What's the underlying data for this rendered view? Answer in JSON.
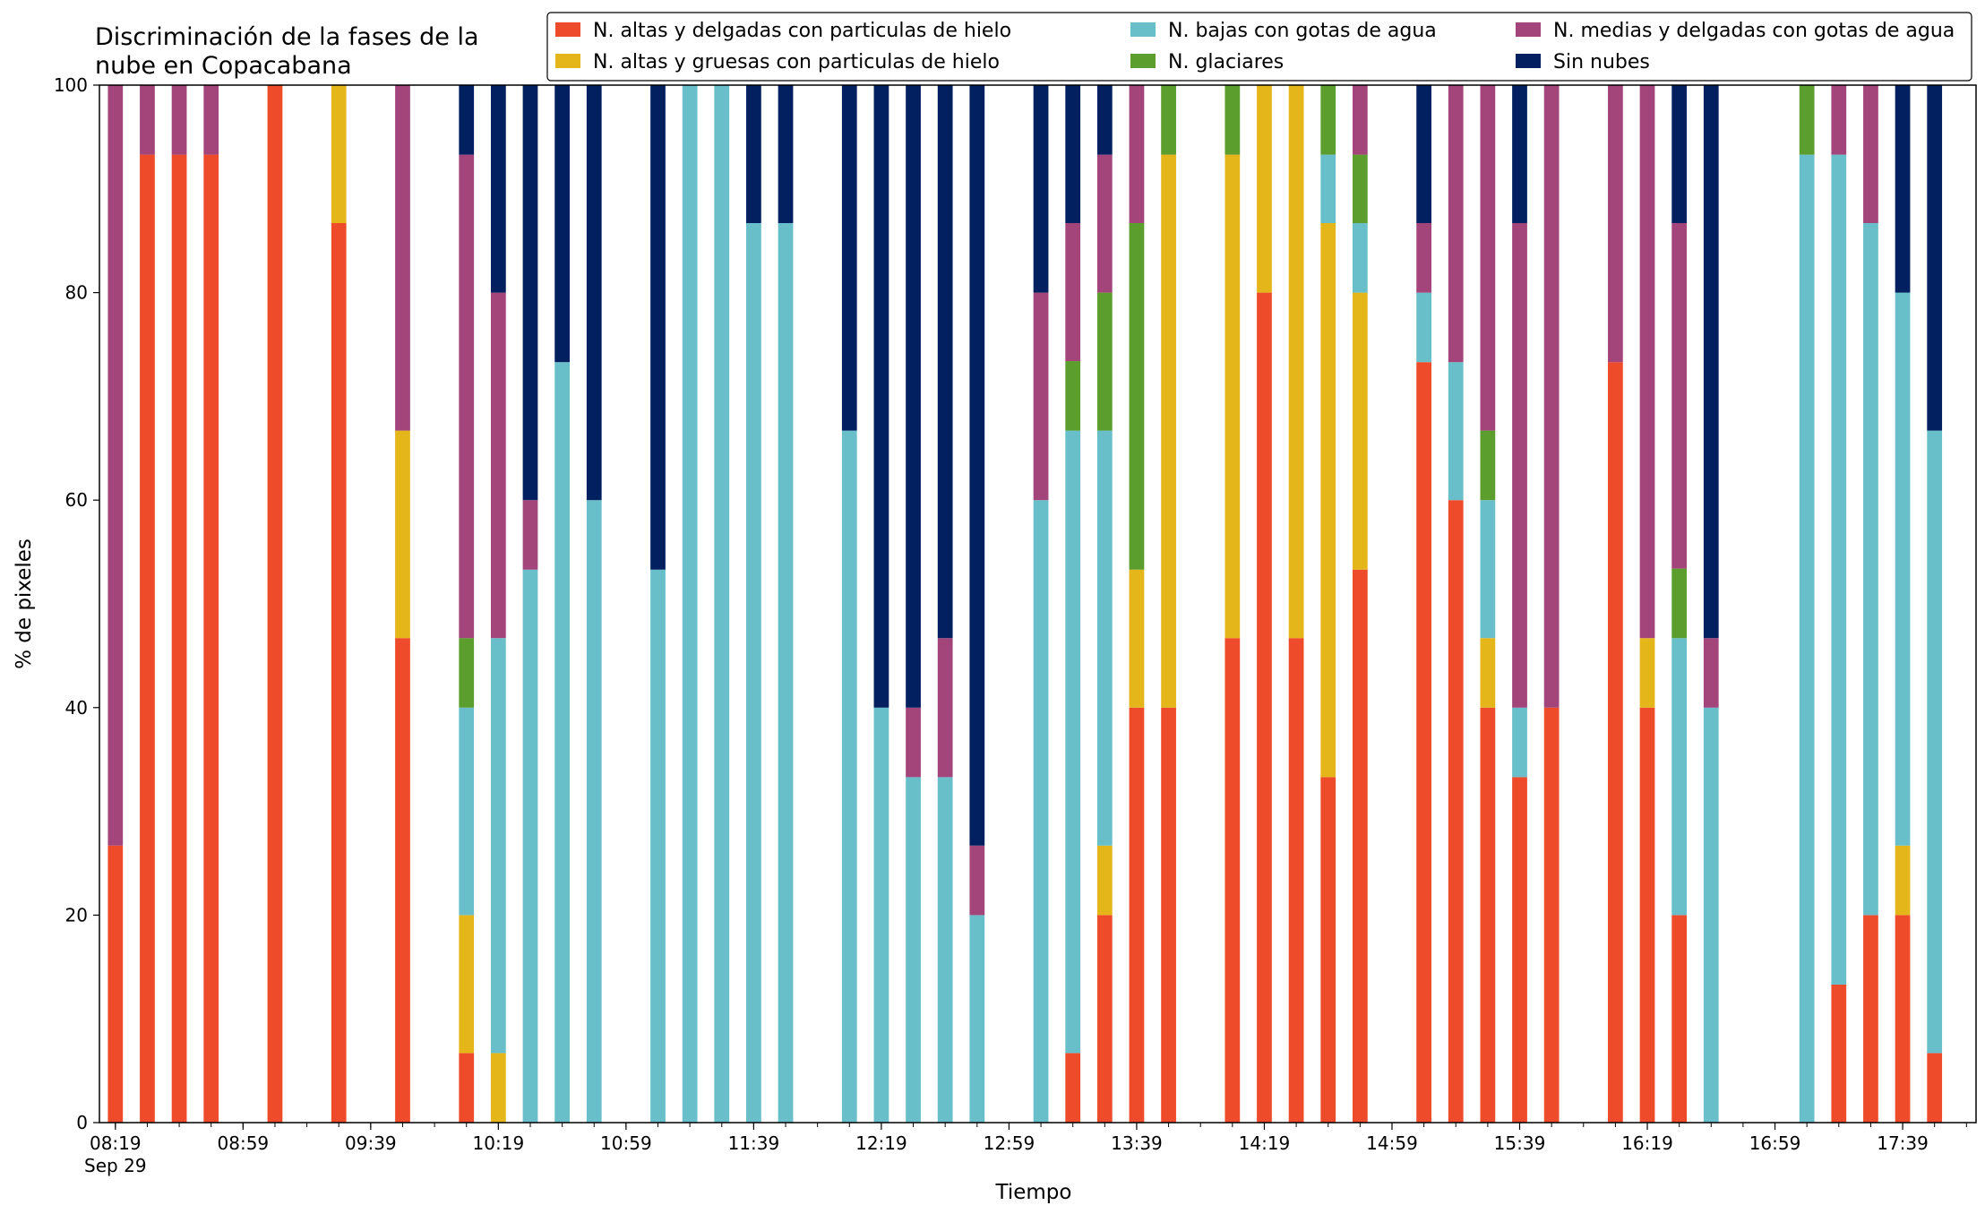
{
  "chart_data": {
    "type": "bar",
    "stacked": true,
    "title_lines": [
      "Discriminación de la fases de la",
      "nube en Copacabana"
    ],
    "xlabel": "Tiempo",
    "ylabel": "% de pixeles",
    "ylim": [
      0,
      100
    ],
    "yticks": [
      0,
      20,
      40,
      60,
      80,
      100
    ],
    "xlim": [
      "08:14",
      "18:02"
    ],
    "xtick_labels": [
      "08:19",
      "08:59",
      "09:39",
      "10:19",
      "10:59",
      "11:39",
      "12:19",
      "12:59",
      "13:39",
      "14:19",
      "14:59",
      "15:39",
      "16:19",
      "16:59",
      "17:39"
    ],
    "xtick_sublabel": "Sep 29",
    "minor_tick_interval_minutes": 10,
    "bar_width_minutes": 4.7,
    "grid": false,
    "legend_position": "top-right",
    "series": [
      {
        "name": "N. altas y delgadas con particulas de hielo",
        "color": "#ee4b2b"
      },
      {
        "name": "N. altas y gruesas con particulas de hielo",
        "color": "#e5b619"
      },
      {
        "name": "N. bajas con gotas de agua",
        "color": "#68bfca"
      },
      {
        "name": "N. glaciares",
        "color": "#5b9e2e"
      },
      {
        "name": "N. medias y delgadas con gotas de agua",
        "color": "#a3457b"
      },
      {
        "name": "Sin nubes",
        "color": "#022060"
      }
    ],
    "bars": [
      {
        "time": "08:19",
        "values": [
          26.7,
          0,
          0,
          0,
          73.3,
          0
        ]
      },
      {
        "time": "08:29",
        "values": [
          93.3,
          0,
          0,
          0,
          6.7,
          0
        ]
      },
      {
        "time": "08:39",
        "values": [
          93.3,
          0,
          0,
          0,
          6.7,
          0
        ]
      },
      {
        "time": "08:49",
        "values": [
          93.3,
          0,
          0,
          0,
          6.7,
          0
        ]
      },
      {
        "time": "09:09",
        "values": [
          100,
          0,
          0,
          0,
          0,
          0
        ]
      },
      {
        "time": "09:29",
        "values": [
          86.7,
          13.3,
          0,
          0,
          0,
          0
        ]
      },
      {
        "time": "09:49",
        "values": [
          46.7,
          20,
          0,
          0,
          33.3,
          0
        ]
      },
      {
        "time": "10:09",
        "values": [
          6.7,
          13.3,
          20,
          6.7,
          46.6,
          6.7
        ]
      },
      {
        "time": "10:19",
        "values": [
          0,
          6.7,
          40,
          0,
          33.3,
          20
        ]
      },
      {
        "time": "10:29",
        "values": [
          0,
          0,
          53.3,
          0,
          6.7,
          40
        ]
      },
      {
        "time": "10:39",
        "values": [
          0,
          0,
          73.3,
          0,
          0,
          26.7
        ]
      },
      {
        "time": "10:49",
        "values": [
          0,
          0,
          60,
          0,
          0,
          40
        ]
      },
      {
        "time": "11:09",
        "values": [
          0,
          0,
          53.3,
          0,
          0,
          46.7
        ]
      },
      {
        "time": "11:19",
        "values": [
          0,
          0,
          100,
          0,
          0,
          0
        ]
      },
      {
        "time": "11:29",
        "values": [
          0,
          0,
          100,
          0,
          0,
          0
        ]
      },
      {
        "time": "11:39",
        "values": [
          0,
          0,
          86.7,
          0,
          0,
          13.3
        ]
      },
      {
        "time": "11:49",
        "values": [
          0,
          0,
          86.7,
          0,
          0,
          13.3
        ]
      },
      {
        "time": "12:09",
        "values": [
          0,
          0,
          66.7,
          0,
          0,
          33.3
        ]
      },
      {
        "time": "12:19",
        "values": [
          0,
          0,
          40,
          0,
          0,
          60
        ]
      },
      {
        "time": "12:29",
        "values": [
          0,
          0,
          33.3,
          0,
          6.7,
          60
        ]
      },
      {
        "time": "12:39",
        "values": [
          0,
          0,
          33.3,
          0,
          13.4,
          53.3
        ]
      },
      {
        "time": "12:49",
        "values": [
          0,
          0,
          20,
          0,
          6.7,
          73.3
        ]
      },
      {
        "time": "13:09",
        "values": [
          0,
          0,
          60,
          0,
          20,
          20
        ]
      },
      {
        "time": "13:19",
        "values": [
          6.7,
          0,
          60,
          6.7,
          13.3,
          13.3
        ]
      },
      {
        "time": "13:29",
        "values": [
          20,
          6.7,
          40,
          13.3,
          13.3,
          6.7
        ]
      },
      {
        "time": "13:39",
        "values": [
          40,
          13.3,
          0,
          33.4,
          13.3,
          0
        ]
      },
      {
        "time": "13:49",
        "values": [
          40,
          53.3,
          0,
          6.7,
          0,
          0
        ]
      },
      {
        "time": "14:09",
        "values": [
          46.7,
          46.6,
          0,
          6.7,
          0,
          0
        ]
      },
      {
        "time": "14:19",
        "values": [
          80,
          20,
          0,
          0,
          0,
          0
        ]
      },
      {
        "time": "14:29",
        "values": [
          46.7,
          53.3,
          0,
          0,
          0,
          0
        ]
      },
      {
        "time": "14:39",
        "values": [
          33.3,
          53.4,
          6.6,
          6.7,
          0,
          0
        ]
      },
      {
        "time": "14:49",
        "values": [
          53.3,
          26.7,
          6.7,
          6.6,
          6.7,
          0
        ]
      },
      {
        "time": "15:09",
        "values": [
          73.3,
          0,
          6.7,
          0,
          6.7,
          13.3
        ]
      },
      {
        "time": "15:19",
        "values": [
          60,
          0,
          13.3,
          0,
          26.7,
          0
        ]
      },
      {
        "time": "15:29",
        "values": [
          40,
          6.7,
          13.3,
          6.7,
          33.3,
          0
        ]
      },
      {
        "time": "15:39",
        "values": [
          33.3,
          0,
          6.7,
          0,
          46.7,
          13.3
        ]
      },
      {
        "time": "15:49",
        "values": [
          40,
          0,
          0,
          0,
          60,
          0
        ]
      },
      {
        "time": "16:09",
        "values": [
          73.3,
          0,
          0,
          0,
          26.7,
          0
        ]
      },
      {
        "time": "16:19",
        "values": [
          40,
          6.7,
          0,
          0,
          53.3,
          0
        ]
      },
      {
        "time": "16:29",
        "values": [
          20,
          0,
          26.7,
          6.7,
          33.3,
          13.3
        ]
      },
      {
        "time": "16:39",
        "values": [
          0,
          0,
          40,
          0,
          6.7,
          53.3
        ]
      },
      {
        "time": "17:09",
        "values": [
          0,
          0,
          93.3,
          6.7,
          0,
          0
        ]
      },
      {
        "time": "17:19",
        "values": [
          13.3,
          0,
          80,
          0,
          6.7,
          0
        ]
      },
      {
        "time": "17:29",
        "values": [
          20,
          0,
          66.7,
          0,
          13.3,
          0
        ]
      },
      {
        "time": "17:39",
        "values": [
          20,
          6.7,
          53.3,
          0,
          0,
          20
        ]
      },
      {
        "time": "17:49",
        "values": [
          6.7,
          0,
          60,
          0,
          0,
          33.3
        ]
      }
    ]
  }
}
